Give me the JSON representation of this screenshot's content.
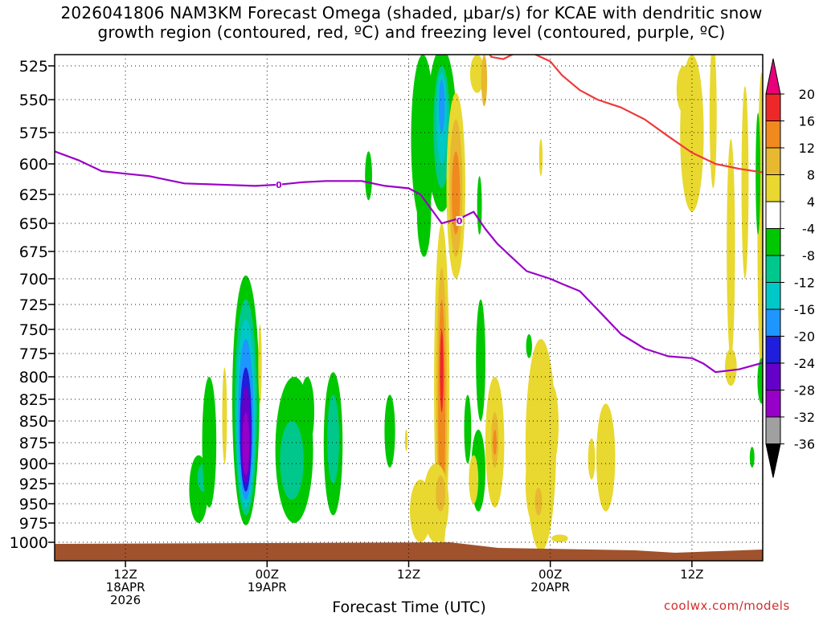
{
  "title": {
    "line1": "2026041806 NAM3KM Forecast Omega (shaded, μbar/s) for KCAE with dendritic snow",
    "line2": "growth region (contoured, red, ºC) and freezing level (contoured, purple, ºC)"
  },
  "credit": "coolwx.com/models",
  "chart_data": {
    "type": "heatmap",
    "xlabel": "Forecast Time (UTC)",
    "ylabel": "",
    "x_range_hours": [
      0,
      60
    ],
    "y_range_hPa": [
      1010,
      520
    ],
    "y_scale": "pressure",
    "grid": "dotted",
    "yticks": [
      525,
      550,
      575,
      600,
      625,
      650,
      675,
      700,
      725,
      750,
      775,
      800,
      825,
      850,
      875,
      900,
      925,
      950,
      975,
      1000
    ],
    "xticks": [
      {
        "hour": 6,
        "lines": [
          "12Z",
          "18APR",
          "2026"
        ]
      },
      {
        "hour": 18,
        "lines": [
          "00Z",
          "19APR"
        ]
      },
      {
        "hour": 30,
        "lines": [
          "12Z"
        ]
      },
      {
        "hour": 42,
        "lines": [
          "00Z",
          "20APR"
        ]
      },
      {
        "hour": 54,
        "lines": [
          "12Z"
        ]
      }
    ],
    "colorbar": {
      "levels": [
        20,
        16,
        12,
        8,
        4,
        -4,
        -8,
        -12,
        -16,
        -20,
        -24,
        -28,
        -32,
        -36
      ],
      "colors": [
        "#e8007a",
        "#ee2828",
        "#f08a1e",
        "#e8b830",
        "#e8d830",
        "#ffffff",
        "#00c800",
        "#00c88c",
        "#00c8c8",
        "#1e96ff",
        "#1e1edc",
        "#6400c8",
        "#9600c8",
        "#a0a0a0",
        "#000000"
      ]
    },
    "series": [
      {
        "name": "freezing level",
        "kind": "contour",
        "label": "0",
        "color": "#9a00c8",
        "x": [
          0,
          2,
          4,
          6,
          8,
          10,
          11,
          14,
          17,
          19,
          21,
          23,
          26,
          28,
          30,
          31,
          32.8,
          33.5,
          34.5,
          35.5,
          36.5,
          37.5,
          38.5,
          40,
          42,
          43,
          44.5,
          46,
          48,
          50,
          52,
          54,
          55,
          56,
          58,
          60
        ],
        "y": [
          590,
          597,
          606,
          608,
          610,
          614,
          616,
          617,
          618,
          617,
          615,
          614,
          614,
          618,
          620,
          625,
          650,
          648,
          645,
          640,
          655,
          668,
          678,
          693,
          700,
          705,
          712,
          730,
          755,
          770,
          778,
          780,
          786,
          795,
          792,
          785
        ]
      },
      {
        "name": "dendritic snow growth region",
        "kind": "contour",
        "color": "#ee3a3a",
        "x": [
          36.5,
          37,
          38,
          39,
          40,
          42,
          43,
          44.5,
          46,
          48,
          50,
          52,
          54,
          56,
          58,
          60
        ],
        "y": [
          515,
          521,
          522,
          519,
          517,
          523,
          532,
          543,
          550,
          556,
          565,
          578,
          591,
          600,
          604,
          607
        ]
      }
    ],
    "regions": [
      {
        "name": "omega-ascent-max",
        "t": 16.2,
        "p_top": 697,
        "p_bottom": 978,
        "value": -32
      },
      {
        "name": "omega-ascent-max",
        "t": 32.8,
        "p_top": 515,
        "p_bottom": 638,
        "value": -20
      },
      {
        "name": "omega-descent-max",
        "t": 32.8,
        "p_top": 780,
        "p_bottom": 1000,
        "value": 16
      },
      {
        "name": "omega-descent-max",
        "t": 34.0,
        "p_top": 575,
        "p_bottom": 648,
        "value": 12
      }
    ]
  }
}
